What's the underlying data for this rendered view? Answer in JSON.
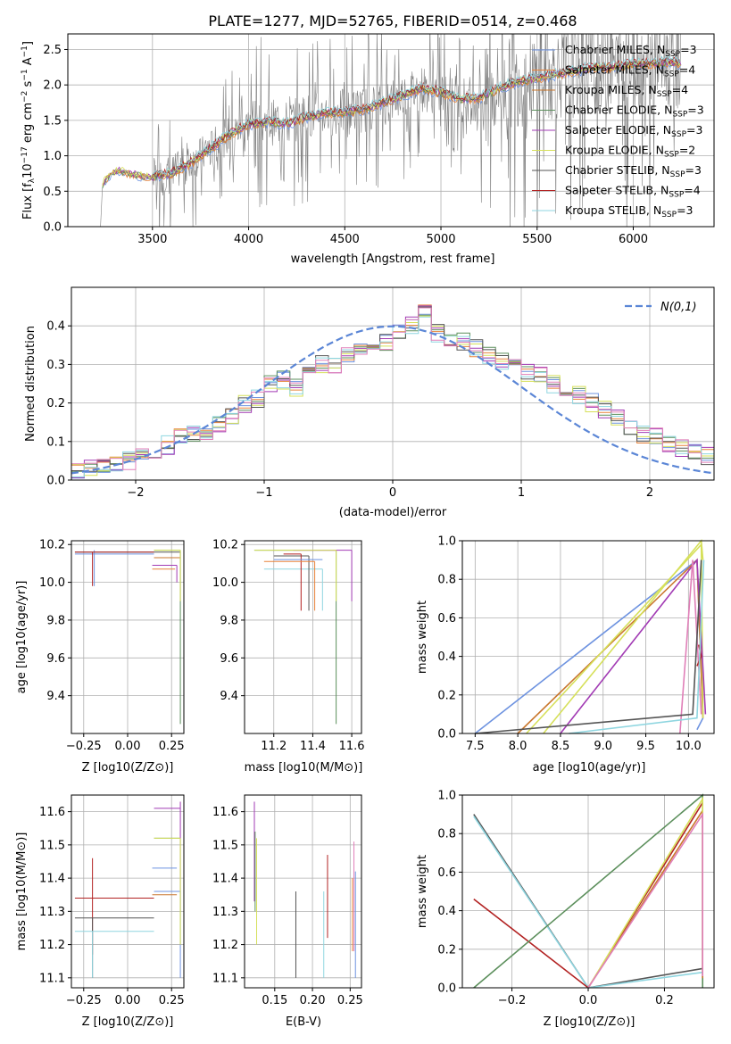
{
  "title": "PLATE=1277, MJD=52765, FIBERID=0514, z=0.468",
  "colors": {
    "Chabrier MILES": "#6e93e0",
    "Salpeter MILES": "#e8833a",
    "Kroupa MILES": "#c9772d",
    "Chabrier ELODIE": "#5c8f5c",
    "Salpeter ELODIE": "#a23bb4",
    "Kroupa ELODIE": "#d6e05a",
    "Chabrier STELIB": "#555555",
    "Salpeter STELIB": "#b22222",
    "Kroupa STELIB": "#8fd6e0",
    "Pink": "#e07fb8"
  },
  "chart_data": [
    {
      "type": "line",
      "id": "spectrum",
      "xlabel": "wavelength [Angstrom, rest frame]",
      "ylabel_main": "Flux [f",
      "ylabel_sub": "λ",
      "ylabel_rest": "10",
      "ylabel_sup": "−17",
      "ylabel_tail": " erg cm",
      "ylabel_units": "−2 s−1 A−1]",
      "xlim": [
        3060,
        6420
      ],
      "ylim": [
        0,
        2.72
      ],
      "xticks": [
        3500,
        4000,
        4500,
        5000,
        5500,
        6000
      ],
      "yticks": [
        0.0,
        0.5,
        1.0,
        1.5,
        2.0,
        2.5
      ],
      "legend": [
        {
          "name": "Chabrier MILES",
          "sub": "SSP",
          "n": "3"
        },
        {
          "name": "Salpeter MILES",
          "sub": "SSP",
          "n": "4"
        },
        {
          "name": "Kroupa MILES",
          "sub": "SSP",
          "n": "4"
        },
        {
          "name": "Chabrier ELODIE",
          "sub": "SSP",
          "n": "3"
        },
        {
          "name": "Salpeter ELODIE",
          "sub": "SSP",
          "n": "3"
        },
        {
          "name": "Kroupa ELODIE",
          "sub": "SSP",
          "n": "2"
        },
        {
          "name": "Chabrier STELIB",
          "sub": "SSP",
          "n": "3"
        },
        {
          "name": "Salpeter STELIB",
          "sub": "SSP",
          "n": "4"
        },
        {
          "name": "Kroupa STELIB",
          "sub": "SSP",
          "n": "3"
        }
      ],
      "legend_prefix": "N",
      "continuum": [
        [
          3230,
          0.0
        ],
        [
          3240,
          0.6
        ],
        [
          3280,
          0.75
        ],
        [
          3320,
          0.8
        ],
        [
          3400,
          0.75
        ],
        [
          3500,
          0.7
        ],
        [
          3600,
          0.75
        ],
        [
          3700,
          0.9
        ],
        [
          3800,
          1.1
        ],
        [
          3900,
          1.3
        ],
        [
          4000,
          1.45
        ],
        [
          4100,
          1.48
        ],
        [
          4200,
          1.45
        ],
        [
          4300,
          1.55
        ],
        [
          4400,
          1.6
        ],
        [
          4500,
          1.62
        ],
        [
          4600,
          1.65
        ],
        [
          4700,
          1.75
        ],
        [
          4800,
          1.85
        ],
        [
          4900,
          1.95
        ],
        [
          5000,
          1.9
        ],
        [
          5100,
          1.8
        ],
        [
          5200,
          1.82
        ],
        [
          5300,
          1.95
        ],
        [
          5400,
          2.05
        ],
        [
          5500,
          2.1
        ],
        [
          5600,
          2.15
        ],
        [
          5700,
          2.2
        ],
        [
          5800,
          2.25
        ],
        [
          5900,
          2.25
        ],
        [
          6000,
          2.3
        ],
        [
          6100,
          2.3
        ],
        [
          6200,
          2.32
        ],
        [
          6250,
          2.3
        ]
      ]
    },
    {
      "type": "bar",
      "id": "residuals",
      "xlabel": "(data-model)/error",
      "ylabel": "Normed distribution",
      "xlim": [
        -2.5,
        2.5
      ],
      "ylim": [
        0,
        0.5
      ],
      "xticks": [
        -2,
        -1,
        0,
        1,
        2
      ],
      "yticks": [
        0.0,
        0.1,
        0.2,
        0.3,
        0.4
      ],
      "legend": "N(0,1)",
      "bin_width": 0.1,
      "bin_start": -2.5,
      "histogram": [
        0.02,
        0.03,
        0.04,
        0.04,
        0.05,
        0.06,
        0.07,
        0.09,
        0.11,
        0.12,
        0.13,
        0.15,
        0.17,
        0.2,
        0.21,
        0.25,
        0.26,
        0.24,
        0.28,
        0.3,
        0.3,
        0.33,
        0.34,
        0.35,
        0.36,
        0.38,
        0.4,
        0.43,
        0.38,
        0.37,
        0.36,
        0.34,
        0.32,
        0.31,
        0.3,
        0.28,
        0.27,
        0.25,
        0.23,
        0.22,
        0.2,
        0.18,
        0.16,
        0.14,
        0.12,
        0.11,
        0.09,
        0.08,
        0.07,
        0.06
      ],
      "gaussian": {
        "mean": 0,
        "sigma": 1
      }
    },
    {
      "type": "scatter",
      "id": "age-vs-Z",
      "xlabel": "Z [log10(Z/Z⊙)]",
      "ylabel": "age  [log10(age/yr)]",
      "xlim": [
        -0.32,
        0.32
      ],
      "ylim": [
        9.2,
        10.22
      ],
      "xticks": [
        -0.25,
        0.0,
        0.25
      ],
      "yticks": [
        9.4,
        9.6,
        9.8,
        10.0,
        10.2
      ]
    },
    {
      "type": "scatter",
      "id": "age-vs-mass",
      "xlabel": "mass [log10(M/M⊙)]",
      "xlim": [
        11.05,
        11.65
      ],
      "ylim": [
        9.2,
        10.22
      ],
      "xticks": [
        11.2,
        11.4,
        11.6
      ],
      "yticks": [
        9.4,
        9.6,
        9.8,
        10.0,
        10.2
      ]
    },
    {
      "type": "line",
      "id": "weight-vs-age",
      "xlabel": "age  [log10(age/yr)]",
      "ylabel": "mass weight",
      "xlim": [
        7.35,
        10.3
      ],
      "ylim": [
        0,
        1
      ],
      "xticks": [
        7.5,
        8.0,
        8.5,
        9.0,
        9.5,
        10.0
      ],
      "yticks": [
        0.0,
        0.2,
        0.4,
        0.6,
        0.8,
        1.0
      ]
    },
    {
      "type": "scatter",
      "id": "mass-vs-Z",
      "xlabel": "Z [log10(Z/Z⊙)]",
      "ylabel": "mass [log10(M/M⊙)]",
      "xlim": [
        -0.32,
        0.32
      ],
      "ylim": [
        11.07,
        11.65
      ],
      "xticks": [
        -0.25,
        0.0,
        0.25
      ],
      "yticks": [
        11.1,
        11.2,
        11.3,
        11.4,
        11.5,
        11.6
      ]
    },
    {
      "type": "scatter",
      "id": "mass-vs-ebv",
      "xlabel": "E(B-V)",
      "xlim": [
        0.11,
        0.265
      ],
      "ylim": [
        11.07,
        11.65
      ],
      "xticks": [
        0.15,
        0.2,
        0.25
      ],
      "yticks": [
        11.1,
        11.2,
        11.3,
        11.4,
        11.5,
        11.6
      ]
    },
    {
      "type": "line",
      "id": "weight-vs-Z",
      "xlabel": "Z [log10(Z/Z⊙)]",
      "ylabel": "mass weight",
      "xlim": [
        -0.33,
        0.33
      ],
      "ylim": [
        0,
        1
      ],
      "xticks": [
        -0.2,
        0.0,
        0.2
      ],
      "yticks": [
        0.0,
        0.2,
        0.4,
        0.6,
        0.8,
        1.0
      ]
    }
  ]
}
